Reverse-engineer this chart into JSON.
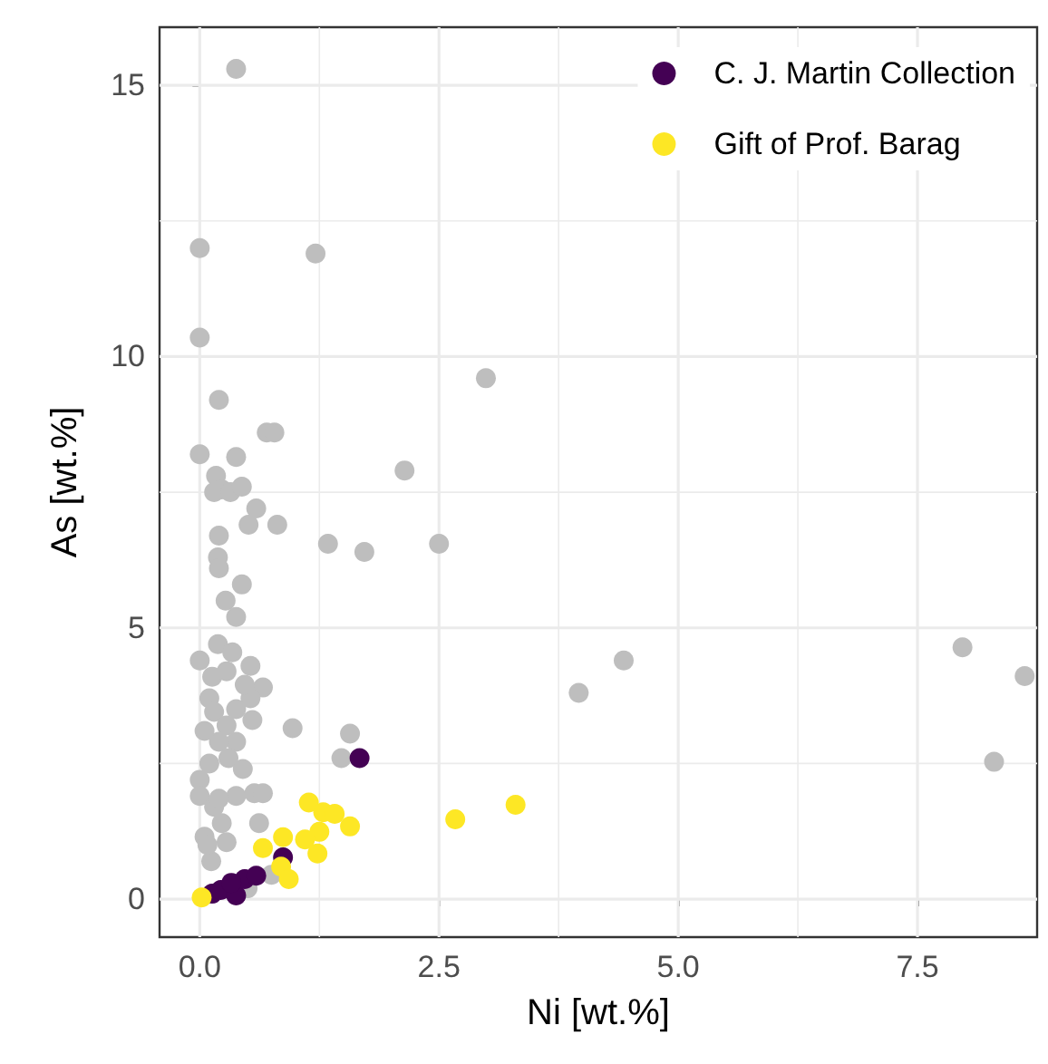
{
  "chart_data": {
    "type": "scatter",
    "xlabel": "Ni [wt.%]",
    "ylabel": "As [wt.%]",
    "xlim": [
      -0.42,
      8.75
    ],
    "ylim": [
      -0.7,
      16.07
    ],
    "xticks": [
      {
        "value": 0,
        "label": "0.0"
      },
      {
        "value": 2.5,
        "label": "2.5"
      },
      {
        "value": 5,
        "label": "5.0"
      },
      {
        "value": 7.5,
        "label": "7.5"
      }
    ],
    "yticks": [
      0,
      5,
      10,
      15
    ],
    "grid": true,
    "legend": "top right",
    "marker": "circle",
    "series": [
      {
        "color": "#bebebe",
        "x": [
          0.38,
          0,
          1.21,
          0,
          0.2,
          2.99,
          0,
          0.38,
          0.7,
          0.78,
          2.14,
          0.17,
          0.23,
          0.15,
          0.32,
          0.44,
          0.59,
          0.2,
          0.51,
          0.81,
          1.34,
          1.72,
          2.5,
          0.19,
          0.2,
          0.44,
          0.27,
          0.38,
          0,
          0.19,
          0.34,
          0.13,
          0.28,
          0.53,
          0.66,
          0.53,
          0.47,
          0.1,
          0.15,
          0.28,
          0.38,
          0.55,
          0.97,
          1.57,
          1.48,
          0,
          0,
          0.1,
          0.15,
          0.23,
          0.38,
          0.57,
          0.05,
          0.12,
          0.28,
          0.66,
          0.62,
          0.38,
          0.2,
          0.05,
          0.3,
          0.45,
          0.08,
          0.2,
          3.96,
          4.43,
          7.97,
          8.62,
          8.3,
          0.75,
          0.5
        ],
        "values": [
          15.3,
          12.0,
          11.9,
          10.35,
          9.2,
          9.6,
          8.2,
          8.15,
          8.6,
          8.6,
          7.9,
          7.8,
          7.55,
          7.5,
          7.5,
          7.6,
          7.2,
          6.7,
          6.9,
          6.9,
          6.55,
          6.4,
          6.55,
          6.3,
          6.1,
          5.8,
          5.5,
          5.2,
          4.4,
          4.7,
          4.55,
          4.1,
          4.2,
          4.3,
          3.9,
          3.7,
          3.95,
          3.7,
          3.45,
          3.2,
          3.5,
          3.3,
          3.15,
          3.05,
          2.6,
          2.2,
          1.9,
          2.5,
          1.7,
          1.4,
          1.9,
          1.95,
          1.15,
          0.7,
          1.05,
          1.95,
          1.4,
          2.9,
          2.9,
          3.1,
          2.6,
          2.4,
          1.0,
          1.85,
          3.8,
          4.4,
          4.64,
          4.11,
          2.53,
          0.45,
          0.2
        ]
      },
      {
        "name": "C. J. Martin Collection",
        "color": "#440154",
        "x": [
          1.67,
          0.87,
          0.13,
          0.22,
          0.38,
          0.47,
          0.59,
          0.33
        ],
        "values": [
          2.6,
          0.77,
          0.1,
          0.17,
          0.07,
          0.37,
          0.43,
          0.3
        ]
      },
      {
        "name": "Gift of Prof. Barag",
        "color": "#fde725",
        "x": [
          1.14,
          1.29,
          1.41,
          1.57,
          1.25,
          1.1,
          1.23,
          0.87,
          0.66,
          0.85,
          0.93,
          2.67,
          3.3,
          0.02
        ],
        "values": [
          1.78,
          1.6,
          1.57,
          1.34,
          1.24,
          1.1,
          0.84,
          1.14,
          0.94,
          0.6,
          0.37,
          1.47,
          1.74,
          0.03
        ]
      }
    ]
  }
}
